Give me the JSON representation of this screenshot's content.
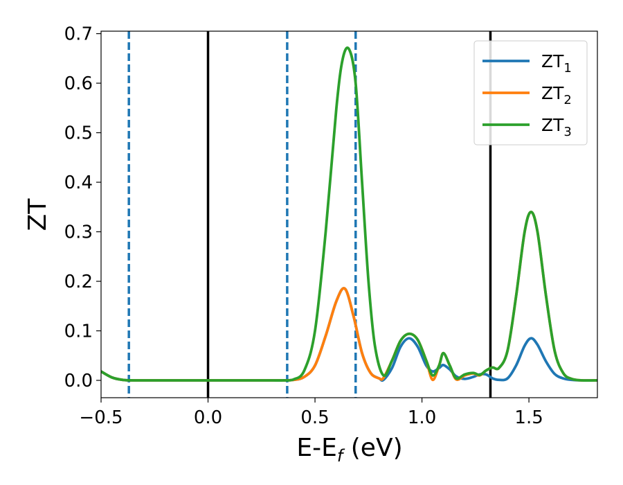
{
  "chart_data": {
    "type": "line",
    "xlabel": "E-E",
    "xlabel_sub": "f",
    "xlabel_unit": " (eV)",
    "ylabel": "ZT",
    "xlim": [
      -0.5,
      1.82
    ],
    "ylim": [
      -0.035,
      0.705
    ],
    "x_ticks": [
      -0.5,
      0.0,
      0.5,
      1.0,
      1.5
    ],
    "x_tick_labels": [
      "−0.5",
      "0.0",
      "0.5",
      "1.0",
      "1.5"
    ],
    "y_ticks": [
      0.0,
      0.1,
      0.2,
      0.3,
      0.4,
      0.5,
      0.6,
      0.7
    ],
    "y_tick_labels": [
      "0.0",
      "0.1",
      "0.2",
      "0.3",
      "0.4",
      "0.5",
      "0.6",
      "0.7"
    ],
    "grid": false,
    "legend_position": "top-right",
    "vlines_solid": [
      0.0,
      1.32
    ],
    "vlines_dashed": [
      -0.37,
      0.37,
      0.69
    ],
    "series": [
      {
        "name": "ZT",
        "sub": "1",
        "color": "#1f77b4",
        "x": [
          -0.5,
          -0.45,
          -0.4,
          -0.35,
          -0.2,
          0.0,
          0.2,
          0.3,
          0.35,
          0.4,
          0.45,
          0.5,
          0.55,
          0.6,
          0.64,
          0.68,
          0.72,
          0.76,
          0.8,
          0.82,
          0.86,
          0.9,
          0.94,
          0.98,
          1.02,
          1.05,
          1.08,
          1.1,
          1.13,
          1.16,
          1.2,
          1.24,
          1.27,
          1.3,
          1.33,
          1.36,
          1.4,
          1.44,
          1.48,
          1.51,
          1.54,
          1.58,
          1.62,
          1.66,
          1.7,
          1.75,
          1.82
        ],
        "y": [
          0.018,
          0.006,
          0.001,
          0.0,
          0.0,
          0.0,
          0.0,
          0.0,
          0.0,
          0.001,
          0.007,
          0.03,
          0.09,
          0.16,
          0.185,
          0.13,
          0.055,
          0.015,
          0.004,
          0.001,
          0.025,
          0.068,
          0.085,
          0.068,
          0.03,
          0.018,
          0.025,
          0.031,
          0.022,
          0.008,
          0.003,
          0.007,
          0.012,
          0.012,
          0.004,
          0.001,
          0.004,
          0.03,
          0.07,
          0.085,
          0.072,
          0.038,
          0.013,
          0.004,
          0.001,
          0.0,
          0.0
        ]
      },
      {
        "name": "ZT",
        "sub": "2",
        "color": "#ff7f0e",
        "x": [
          -0.5,
          -0.45,
          -0.4,
          -0.35,
          -0.2,
          0.0,
          0.2,
          0.3,
          0.35,
          0.4,
          0.45,
          0.5,
          0.55,
          0.6,
          0.64,
          0.68,
          0.72,
          0.76,
          0.8,
          0.82,
          0.86,
          0.9,
          0.94,
          0.98,
          1.02,
          1.05,
          1.08,
          1.1,
          1.13,
          1.16,
          1.2,
          1.24,
          1.27,
          1.3,
          1.33,
          1.36,
          1.4,
          1.44,
          1.48,
          1.51,
          1.54,
          1.58,
          1.62,
          1.66,
          1.7,
          1.75,
          1.82
        ],
        "y": [
          0.018,
          0.006,
          0.001,
          0.0,
          0.0,
          0.0,
          0.0,
          0.0,
          0.0,
          0.001,
          0.007,
          0.03,
          0.09,
          0.16,
          0.185,
          0.13,
          0.055,
          0.015,
          0.004,
          0.005,
          0.04,
          0.08,
          0.094,
          0.082,
          0.04,
          0.001,
          0.03,
          0.055,
          0.03,
          0.002,
          0.01,
          0.014,
          0.01,
          0.02,
          0.026,
          0.025,
          0.06,
          0.17,
          0.3,
          0.34,
          0.3,
          0.17,
          0.06,
          0.015,
          0.003,
          0.0,
          0.0
        ]
      },
      {
        "name": "ZT",
        "sub": "3",
        "color": "#2ca02c",
        "x": [
          -0.5,
          -0.45,
          -0.4,
          -0.35,
          -0.2,
          0.0,
          0.2,
          0.3,
          0.35,
          0.4,
          0.45,
          0.5,
          0.55,
          0.6,
          0.63,
          0.66,
          0.69,
          0.72,
          0.75,
          0.78,
          0.82,
          0.86,
          0.9,
          0.94,
          0.98,
          1.02,
          1.05,
          1.08,
          1.1,
          1.13,
          1.16,
          1.2,
          1.24,
          1.27,
          1.3,
          1.33,
          1.36,
          1.4,
          1.44,
          1.48,
          1.51,
          1.54,
          1.58,
          1.62,
          1.66,
          1.7,
          1.75,
          1.82
        ],
        "y": [
          0.018,
          0.006,
          0.001,
          0.0,
          0.0,
          0.0,
          0.0,
          0.0,
          0.0,
          0.002,
          0.02,
          0.1,
          0.3,
          0.55,
          0.65,
          0.668,
          0.6,
          0.4,
          0.2,
          0.07,
          0.01,
          0.04,
          0.08,
          0.094,
          0.082,
          0.04,
          0.01,
          0.03,
          0.055,
          0.03,
          0.004,
          0.012,
          0.015,
          0.011,
          0.02,
          0.026,
          0.025,
          0.06,
          0.17,
          0.3,
          0.34,
          0.3,
          0.17,
          0.06,
          0.015,
          0.003,
          0.0,
          0.0
        ]
      }
    ]
  }
}
